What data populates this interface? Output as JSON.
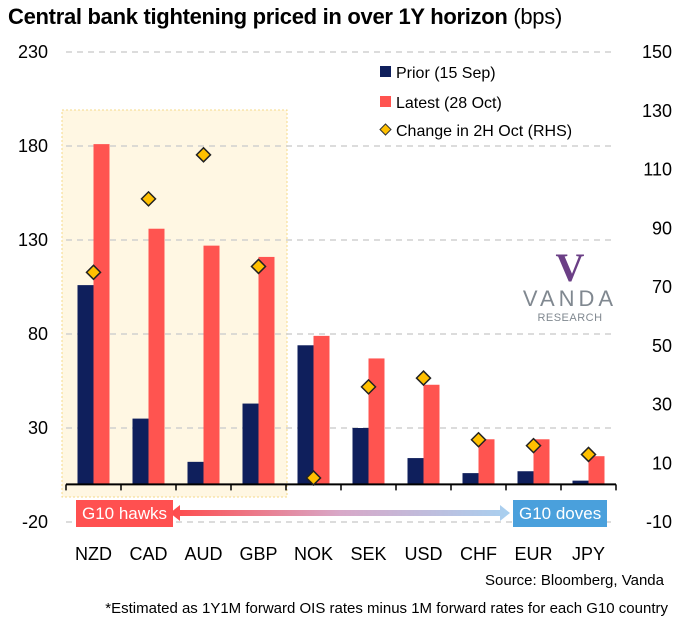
{
  "title": {
    "main": "Central bank tightening priced in over 1Y horizon",
    "unit": "(bps)"
  },
  "source": "Source: Bloomberg, Vanda",
  "footnote": "*Estimated as 1Y1M forward OIS rates minus 1M forward rates for each G10 country",
  "annotations": {
    "hawks_label": "G10 hawks",
    "doves_label": "G10 doves",
    "highlight_group": [
      "NZD",
      "CAD",
      "AUD",
      "GBP"
    ]
  },
  "logo": {
    "mark": "V",
    "name": "VANDA",
    "sub": "RESEARCH"
  },
  "colors": {
    "prior": "#0f1f5c",
    "latest": "#ff5450",
    "change": "#ffc000",
    "highlight": "#fff7e3",
    "hawks": "#ff5050",
    "doves": "#4aa0dc"
  },
  "chart_data": {
    "type": "bar",
    "title": "Central bank tightening priced in over 1Y horizon (bps)",
    "xlabel": "",
    "ylabel": "bps",
    "categories": [
      "NZD",
      "CAD",
      "AUD",
      "GBP",
      "NOK",
      "SEK",
      "USD",
      "CHF",
      "EUR",
      "JPY"
    ],
    "series": [
      {
        "name": "Prior (15 Sep)",
        "type": "bar",
        "axis": "left",
        "values": [
          106,
          35,
          12,
          43,
          74,
          30,
          14,
          6,
          7,
          2
        ]
      },
      {
        "name": "Latest (28 Oct)",
        "type": "bar",
        "axis": "left",
        "values": [
          181,
          136,
          127,
          121,
          79,
          67,
          53,
          24,
          24,
          15
        ]
      },
      {
        "name": "Change in 2H Oct (RHS)",
        "type": "scatter",
        "marker": "diamond",
        "axis": "right",
        "values": [
          75,
          100,
          115,
          77,
          5,
          36,
          39,
          18,
          16,
          13
        ]
      }
    ],
    "ylim": [
      -20,
      230
    ],
    "yticks": [
      230,
      180,
      130,
      80,
      30,
      -20
    ],
    "y2lim": [
      -10,
      150
    ],
    "y2ticks": [
      150,
      130,
      110,
      90,
      70,
      50,
      30,
      10,
      -10
    ],
    "grid": true,
    "legend": "top-right"
  }
}
